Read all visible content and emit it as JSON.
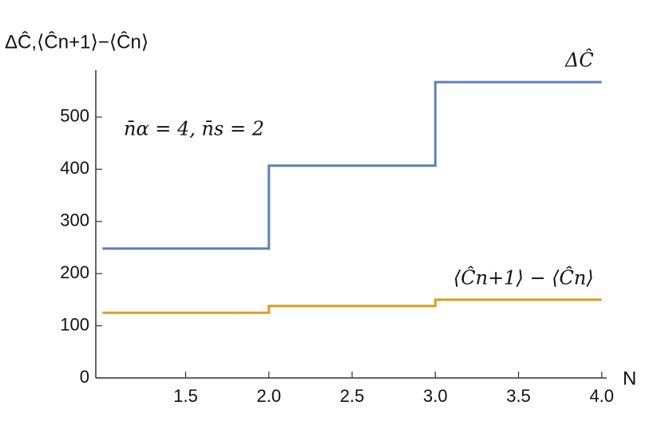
{
  "chart_data": {
    "type": "step",
    "y_label": "ΔĈ,⟨Ĉn+1⟩−⟨Ĉn⟩",
    "x_label": "N",
    "annotation": "n̄α = 4, n̄s = 2",
    "x": [
      1,
      2,
      3,
      4
    ],
    "series": [
      {
        "name": "ΔĈ",
        "color": "#5e81b5",
        "values": [
          248,
          407,
          567,
          567
        ]
      },
      {
        "name": "⟨Ĉn+1⟩ − ⟨Ĉn⟩",
        "color": "#e19c24",
        "values": [
          125,
          138,
          150,
          150
        ]
      }
    ],
    "xlim": [
      0.96,
      4.03
    ],
    "ylim": [
      0,
      590
    ],
    "xticks": [
      1.5,
      {
        "value": 2,
        "label": "2.0"
      },
      2.5,
      {
        "value": 3,
        "label": "3.0"
      },
      3.5,
      {
        "value": 4,
        "label": "4.0"
      }
    ],
    "yticks": [
      0,
      100,
      200,
      300,
      400,
      500
    ]
  }
}
